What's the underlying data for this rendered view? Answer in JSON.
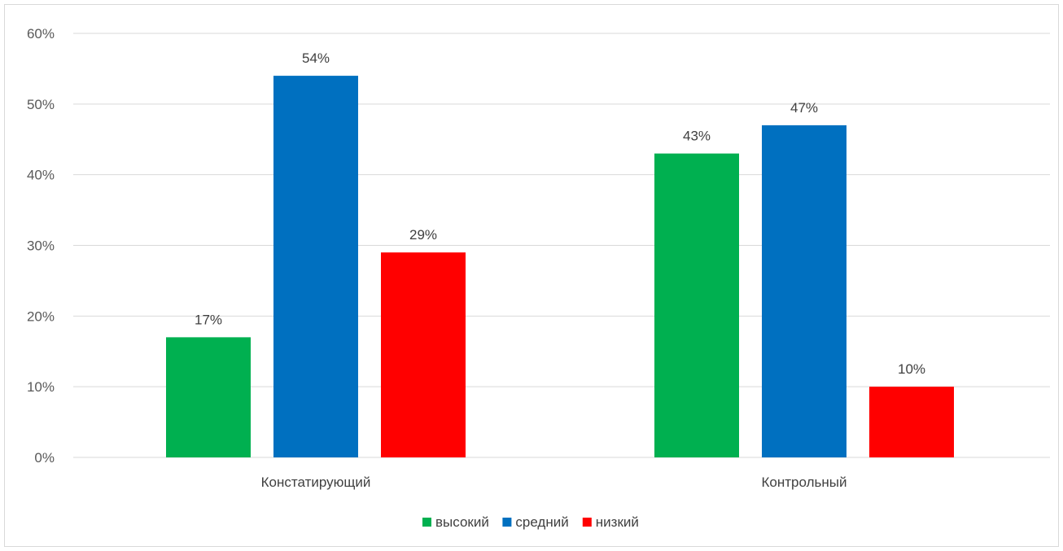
{
  "chart_data": {
    "type": "bar",
    "categories": [
      "Констатирующий",
      "Контрольный"
    ],
    "series": [
      {
        "name": "высокий",
        "values": [
          17,
          43
        ],
        "color": "#00b050"
      },
      {
        "name": "средний",
        "values": [
          54,
          47
        ],
        "color": "#0070c0"
      },
      {
        "name": "низкий",
        "values": [
          29,
          10
        ],
        "color": "#ff0000"
      }
    ],
    "value_suffix": "%",
    "y_ticks": [
      "0%",
      "10%",
      "20%",
      "30%",
      "40%",
      "50%",
      "60%"
    ],
    "ylim": [
      0,
      60
    ],
    "grid": true,
    "legend_position": "bottom",
    "gridline_color": "#d9d9d9"
  }
}
